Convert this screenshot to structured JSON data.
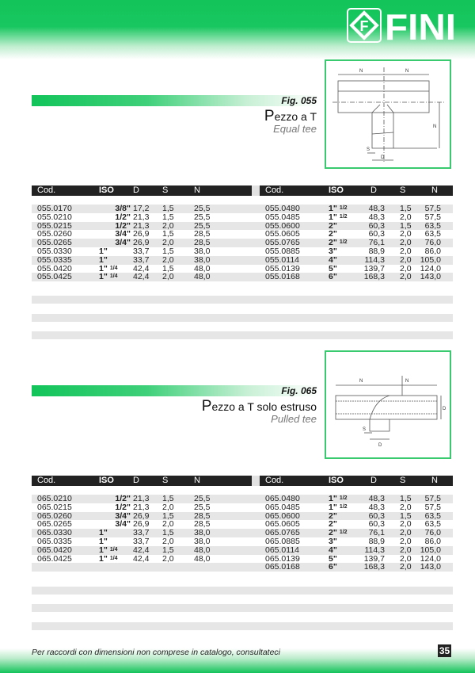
{
  "brand": {
    "logo_text": "FINI",
    "accent": "#12c45a"
  },
  "columns": [
    "Cod.",
    "ISO",
    "D",
    "S",
    "N"
  ],
  "sections": [
    {
      "fig": "Fig. 055",
      "title_initial": "P",
      "title_rest": "ezzo a T",
      "subtitle": "Equal tee",
      "left": [
        {
          "cod": "055.0170",
          "iso": "3/8\"",
          "frac": "",
          "d": "17,2",
          "s": "1,5",
          "n": "25,5"
        },
        {
          "cod": "055.0210",
          "iso": "1/2\"",
          "frac": "",
          "d": "21,3",
          "s": "1,5",
          "n": "25,5"
        },
        {
          "cod": "055.0215",
          "iso": "1/2\"",
          "frac": "",
          "d": "21,3",
          "s": "2,0",
          "n": "25,5"
        },
        {
          "cod": "055.0260",
          "iso": "3/4\"",
          "frac": "",
          "d": "26,9",
          "s": "1,5",
          "n": "28,5"
        },
        {
          "cod": "055.0265",
          "iso": "3/4\"",
          "frac": "",
          "d": "26,9",
          "s": "2,0",
          "n": "28,5"
        },
        {
          "cod": "055.0330",
          "iso": "1\"",
          "frac": "",
          "d": "33,7",
          "s": "1,5",
          "n": "38,0"
        },
        {
          "cod": "055.0335",
          "iso": "1\"",
          "frac": "",
          "d": "33,7",
          "s": "2,0",
          "n": "38,0"
        },
        {
          "cod": "055.0420",
          "iso": "1\"",
          "frac": "1/4",
          "d": "42,4",
          "s": "1,5",
          "n": "48,0"
        },
        {
          "cod": "055.0425",
          "iso": "1\"",
          "frac": "1/4",
          "d": "42,4",
          "s": "2,0",
          "n": "48,0"
        }
      ],
      "right": [
        {
          "cod": "055.0480",
          "iso": "1\"",
          "frac": "1/2",
          "d": "48,3",
          "s": "1,5",
          "n": "57,5"
        },
        {
          "cod": "055.0485",
          "iso": "1\"",
          "frac": "1/2",
          "d": "48,3",
          "s": "2,0",
          "n": "57,5"
        },
        {
          "cod": "055.0600",
          "iso": "2\"",
          "frac": "",
          "d": "60,3",
          "s": "1,5",
          "n": "63,5"
        },
        {
          "cod": "055.0605",
          "iso": "2\"",
          "frac": "",
          "d": "60,3",
          "s": "2,0",
          "n": "63,5"
        },
        {
          "cod": "055.0765",
          "iso": "2\"",
          "frac": "1/2",
          "d": "76,1",
          "s": "2,0",
          "n": "76,0"
        },
        {
          "cod": "055.0885",
          "iso": "3\"",
          "frac": "",
          "d": "88,9",
          "s": "2,0",
          "n": "86,0"
        },
        {
          "cod": "055.0114",
          "iso": "4\"",
          "frac": "",
          "d": "114,3",
          "s": "2,0",
          "n": "105,0"
        },
        {
          "cod": "055.0139",
          "iso": "5\"",
          "frac": "",
          "d": "139,7",
          "s": "2,0",
          "n": "124,0"
        },
        {
          "cod": "055.0168",
          "iso": "6\"",
          "frac": "",
          "d": "168,3",
          "s": "2,0",
          "n": "143,0"
        }
      ]
    },
    {
      "fig": "Fig. 065",
      "title_initial": "P",
      "title_rest": "ezzo a T solo estruso",
      "subtitle": "Pulled tee",
      "left": [
        {
          "cod": "065.0210",
          "iso": "1/2\"",
          "frac": "",
          "d": "21,3",
          "s": "1,5",
          "n": "25,5"
        },
        {
          "cod": "065.0215",
          "iso": "1/2\"",
          "frac": "",
          "d": "21,3",
          "s": "2,0",
          "n": "25,5"
        },
        {
          "cod": "065.0260",
          "iso": "3/4\"",
          "frac": "",
          "d": "26,9",
          "s": "1,5",
          "n": "28,5"
        },
        {
          "cod": "065.0265",
          "iso": "3/4\"",
          "frac": "",
          "d": "26,9",
          "s": "2,0",
          "n": "28,5"
        },
        {
          "cod": "065.0330",
          "iso": "1\"",
          "frac": "",
          "d": "33,7",
          "s": "1,5",
          "n": "38,0"
        },
        {
          "cod": "065.0335",
          "iso": "1\"",
          "frac": "",
          "d": "33,7",
          "s": "2,0",
          "n": "38,0"
        },
        {
          "cod": "065.0420",
          "iso": "1\"",
          "frac": "1/4",
          "d": "42,4",
          "s": "1,5",
          "n": "48,0"
        },
        {
          "cod": "065.0425",
          "iso": "1\"",
          "frac": "1/4",
          "d": "42,4",
          "s": "2,0",
          "n": "48,0"
        }
      ],
      "right": [
        {
          "cod": "065.0480",
          "iso": "1\"",
          "frac": "1/2",
          "d": "48,3",
          "s": "1,5",
          "n": "57,5"
        },
        {
          "cod": "065.0485",
          "iso": "1\"",
          "frac": "1/2",
          "d": "48,3",
          "s": "2,0",
          "n": "57,5"
        },
        {
          "cod": "065.0600",
          "iso": "2\"",
          "frac": "",
          "d": "60,3",
          "s": "1,5",
          "n": "63,5"
        },
        {
          "cod": "065.0605",
          "iso": "2\"",
          "frac": "",
          "d": "60,3",
          "s": "2,0",
          "n": "63,5"
        },
        {
          "cod": "065.0765",
          "iso": "2\"",
          "frac": "1/2",
          "d": "76,1",
          "s": "2,0",
          "n": "76,0"
        },
        {
          "cod": "065.0885",
          "iso": "3\"",
          "frac": "",
          "d": "88,9",
          "s": "2,0",
          "n": "86,0"
        },
        {
          "cod": "065.0114",
          "iso": "4\"",
          "frac": "",
          "d": "114,3",
          "s": "2,0",
          "n": "105,0"
        },
        {
          "cod": "065.0139",
          "iso": "5\"",
          "frac": "",
          "d": "139,7",
          "s": "2,0",
          "n": "124,0"
        },
        {
          "cod": "065.0168",
          "iso": "6\"",
          "frac": "",
          "d": "168,3",
          "s": "2,0",
          "n": "143,0"
        }
      ]
    }
  ],
  "diagram_labels": {
    "n": "N",
    "d": "D",
    "s": "S"
  },
  "footer": {
    "note": "Per raccordi con dimensioni non comprese in catalogo, consultateci",
    "page": "35"
  }
}
